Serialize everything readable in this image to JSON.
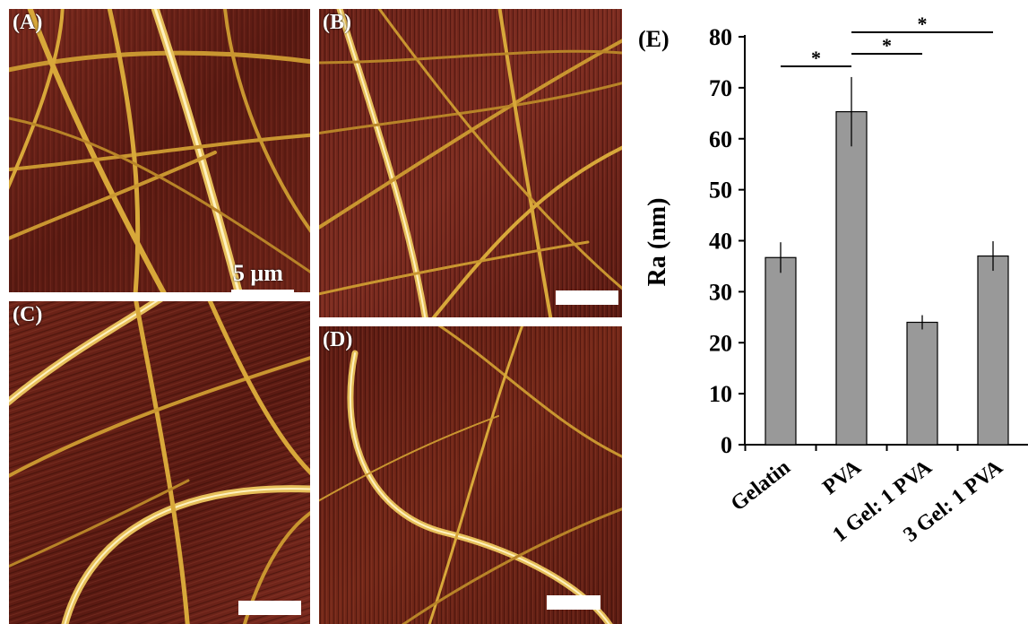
{
  "panels": [
    {
      "label": "(A)",
      "scale_text": "5 μm"
    },
    {
      "label": "(B)"
    },
    {
      "label": "(C)"
    },
    {
      "label": "(D)"
    }
  ],
  "chart_data": {
    "type": "bar",
    "panel_label": "(E)",
    "categories": [
      "Gelatin",
      "PVA",
      "1 Gel: 1 PVA",
      "3 Gel: 1 PVA"
    ],
    "values": [
      36.7,
      65.3,
      24.0,
      37.0
    ],
    "errors": [
      3.0,
      6.8,
      1.4,
      2.9
    ],
    "ylabel": "Ra (nm)",
    "ylim": [
      0,
      80
    ],
    "yticks": [
      0,
      10,
      20,
      30,
      40,
      50,
      60,
      70,
      80
    ],
    "bar_color": "#999999",
    "significance": [
      {
        "from": 0,
        "to": 1,
        "label": "*"
      },
      {
        "from": 1,
        "to": 2,
        "label": "*"
      },
      {
        "from": 1,
        "to": 3,
        "label": "*"
      }
    ]
  },
  "colors": {
    "afm_background": "#5a1a12",
    "fiber": "#d8a83a",
    "fiber_highlight": "#fff2c0"
  }
}
